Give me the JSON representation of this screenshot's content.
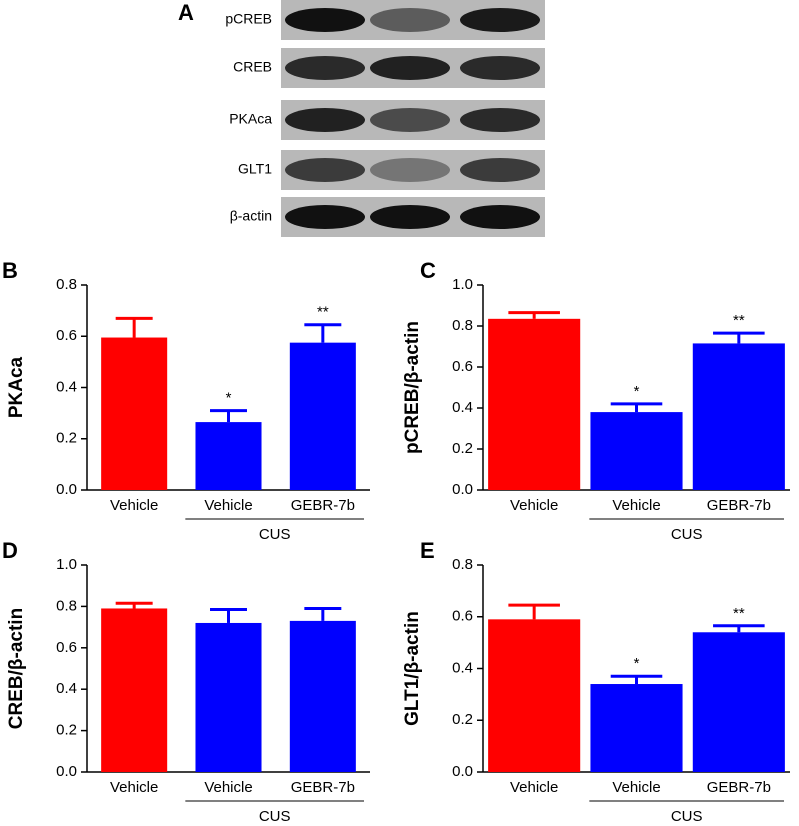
{
  "blot": {
    "panel_label": "A",
    "rows": [
      "pCREB",
      "CREB",
      "PKAca",
      "GLT1",
      "β-actin"
    ]
  },
  "chart_data": [
    {
      "type": "bar",
      "panel_label": "B",
      "ylabel": "PKAca",
      "categories": [
        "Vehicle",
        "Vehicle",
        "GEBR-7b"
      ],
      "group_label": "CUS",
      "values": [
        0.595,
        0.265,
        0.575
      ],
      "errors": [
        0.075,
        0.045,
        0.07
      ],
      "annotations": [
        null,
        "*",
        "**"
      ],
      "colors": [
        "#ff0000",
        "#0000ff",
        "#0000ff"
      ],
      "ylim": [
        0,
        0.8
      ],
      "yticks": [
        {
          "value": 0,
          "label": "0.0"
        },
        0.2,
        0.4,
        0.6,
        0.8
      ]
    },
    {
      "type": "bar",
      "panel_label": "C",
      "ylabel": "pCREB/β-actin",
      "categories": [
        "Vehicle",
        "Vehicle",
        "GEBR-7b"
      ],
      "group_label": "CUS",
      "values": [
        0.835,
        0.38,
        0.715
      ],
      "errors": [
        0.03,
        0.04,
        0.05
      ],
      "annotations": [
        null,
        "*",
        "**"
      ],
      "colors": [
        "#ff0000",
        "#0000ff",
        "#0000ff"
      ],
      "ylim": [
        0,
        1.0
      ],
      "yticks": [
        {
          "value": 0,
          "label": "0.0"
        },
        0.2,
        0.4,
        0.6,
        0.8,
        {
          "value": 1,
          "label": "1.0"
        }
      ]
    },
    {
      "type": "bar",
      "panel_label": "D",
      "ylabel": "CREB/β-actin",
      "categories": [
        "Vehicle",
        "Vehicle",
        "GEBR-7b"
      ],
      "group_label": "CUS",
      "values": [
        0.79,
        0.72,
        0.73
      ],
      "errors": [
        0.025,
        0.065,
        0.06
      ],
      "colors": [
        "#ff0000",
        "#0000ff",
        "#0000ff"
      ],
      "ylim": [
        0,
        1.0
      ],
      "yticks": [
        {
          "value": 0,
          "label": "0.0"
        },
        0.2,
        0.4,
        0.6,
        0.8,
        {
          "value": 1,
          "label": "1.0"
        }
      ]
    },
    {
      "type": "bar",
      "panel_label": "E",
      "ylabel": "GLT1/β-actin",
      "categories": [
        "Vehicle",
        "Vehicle",
        "GEBR-7b"
      ],
      "group_label": "CUS",
      "values": [
        0.59,
        0.34,
        0.54
      ],
      "errors": [
        0.055,
        0.03,
        0.025
      ],
      "annotations": [
        null,
        "*",
        "**"
      ],
      "colors": [
        "#ff0000",
        "#0000ff",
        "#0000ff"
      ],
      "ylim": [
        0,
        0.8
      ],
      "yticks": [
        {
          "value": 0,
          "label": "0.0"
        },
        0.2,
        0.4,
        0.6,
        0.8
      ]
    }
  ]
}
